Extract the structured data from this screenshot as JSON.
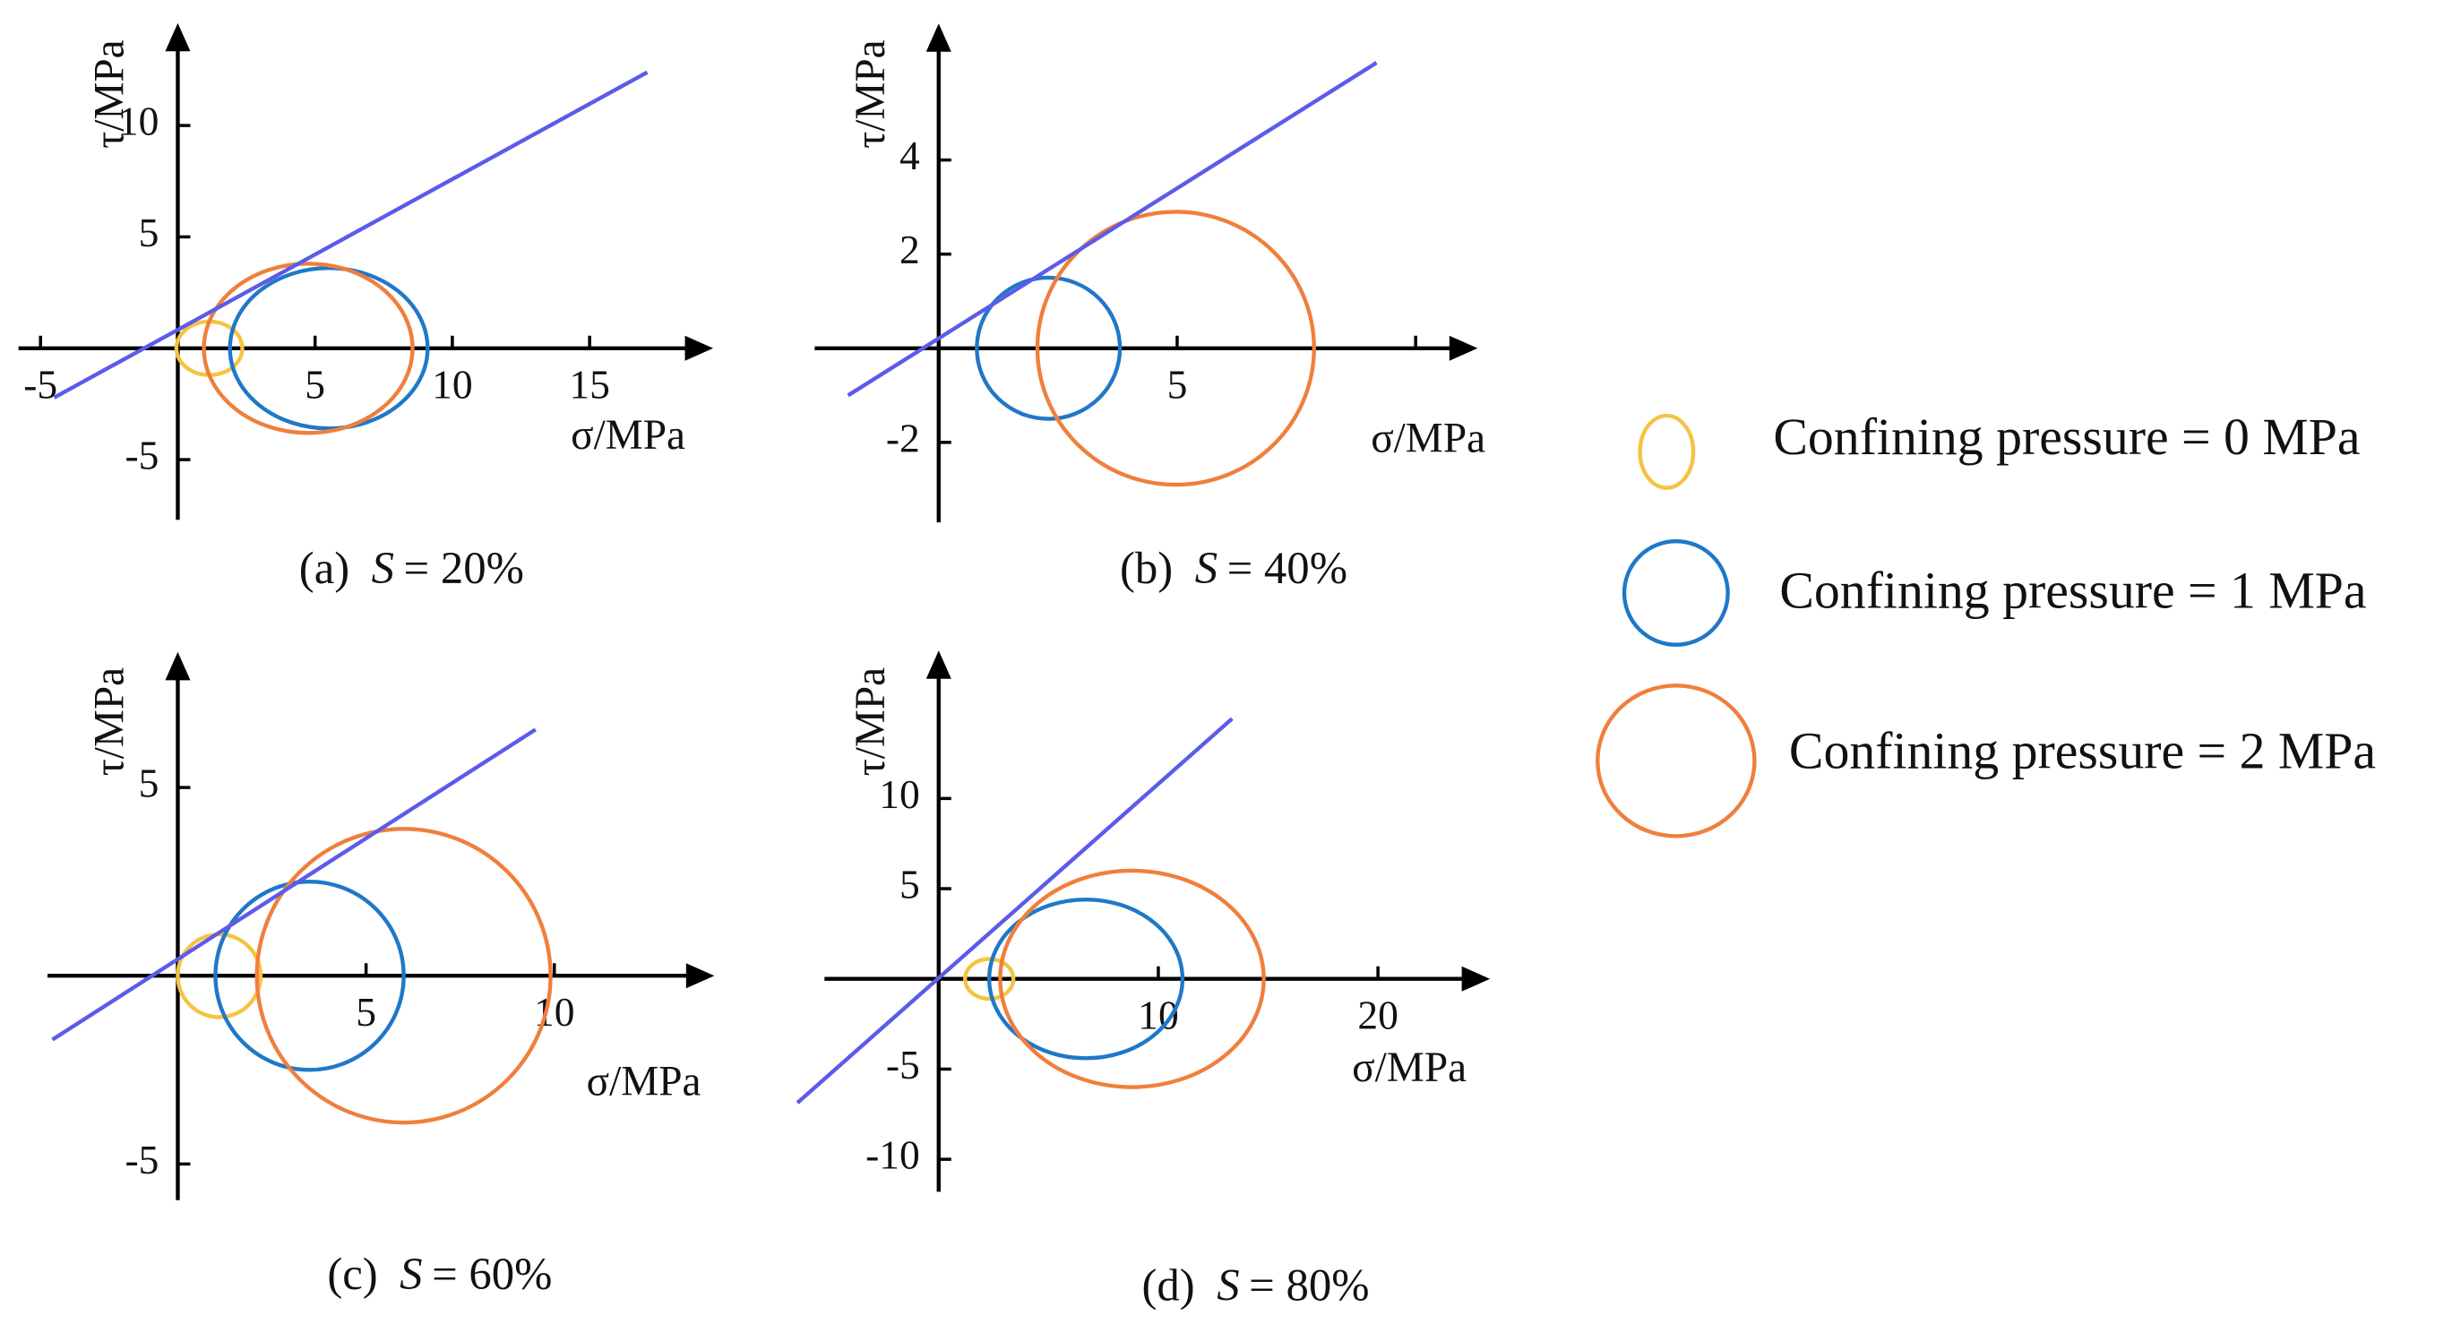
{
  "chart_data": [
    {
      "type": "mohr",
      "caption_label": "(a)",
      "caption_var": "S",
      "caption_value": "= 20%",
      "xlabel": "σ/MPa",
      "ylabel": "τ/MPa",
      "xlim": [
        -5.8,
        19.5
      ],
      "ylim": [
        -7.7,
        14.6
      ],
      "xticks": [
        -5,
        5,
        10,
        15
      ],
      "yticks": [
        -5,
        5,
        10
      ],
      "series": [
        {
          "name": "Confining pressure = 0 MPa",
          "color": "#f5c342",
          "center": 1.15,
          "radius": 1.2
        },
        {
          "name": "Confining pressure = 1 MPa",
          "color": "#1f78c8",
          "center": 5.5,
          "radius": 3.6
        },
        {
          "name": "Confining pressure = 2 MPa",
          "color": "#f07f3c",
          "center": 4.75,
          "radius": 3.8
        }
      ],
      "envelope": {
        "color": "#5b5bea",
        "intercept": 0.83,
        "slope": 0.676,
        "x_range": [
          -4.5,
          17.1
        ]
      }
    },
    {
      "type": "mohr",
      "caption_label": "(b)",
      "caption_var": "S",
      "caption_value": "= 40%",
      "xlabel": "σ/MPa",
      "ylabel": "τ/MPa",
      "xlim": [
        -2.6,
        11.3
      ],
      "ylim": [
        -3.7,
        6.9
      ],
      "xticks": [
        5
      ],
      "xticks_unlabeled": [
        10
      ],
      "yticks": [
        -2,
        2,
        4
      ],
      "series": [
        {
          "color": "#1f78c8",
          "center": 2.3,
          "radius": 1.5
        },
        {
          "color": "#f07f3c",
          "center": 4.97,
          "radius": 2.9
        }
      ],
      "envelope": {
        "color": "#5b5bea",
        "intercept": 0.21,
        "slope": 0.638,
        "x_range": [
          -1.9,
          9.18
        ]
      }
    },
    {
      "type": "mohr",
      "caption_label": "(c)",
      "caption_var": "S",
      "caption_value": "= 60%",
      "xlabel": "σ/MPa",
      "ylabel": "τ/MPa",
      "xlim": [
        -3.46,
        14.25
      ],
      "ylim": [
        -5.96,
        8.6
      ],
      "xticks": [
        5,
        10
      ],
      "yticks": [
        -5,
        5
      ],
      "series": [
        {
          "color": "#f5c342",
          "center": 1.1,
          "radius": 1.1
        },
        {
          "color": "#1f78c8",
          "center": 3.5,
          "radius": 2.5
        },
        {
          "color": "#f07f3c",
          "center": 6.0,
          "radius": 3.9
        }
      ],
      "envelope": {
        "color": "#5b5bea",
        "intercept": 0.44,
        "slope": 0.642,
        "x_range": [
          -3.33,
          9.5
        ]
      }
    },
    {
      "type": "mohr",
      "caption_label": "(d)",
      "caption_var": "S",
      "caption_value": "= 80%",
      "xlabel": "σ/MPa",
      "ylabel": "τ/MPa",
      "xlim": [
        -5.2,
        25.1
      ],
      "ylim": [
        -11.8,
        18.2
      ],
      "xticks": [
        10,
        20
      ],
      "yticks": [
        -10,
        -5,
        5,
        10
      ],
      "series": [
        {
          "color": "#f5c342",
          "center": 2.3,
          "radius": 1.1
        },
        {
          "color": "#1f78c8",
          "center": 6.7,
          "radius": 4.4
        },
        {
          "color": "#f07f3c",
          "center": 8.8,
          "radius": 6.0
        }
      ],
      "envelope": {
        "color": "#5b5bea",
        "intercept": 0.05,
        "slope": 1.076,
        "x_range": [
          -6.43,
          13.36
        ]
      }
    }
  ]
}
